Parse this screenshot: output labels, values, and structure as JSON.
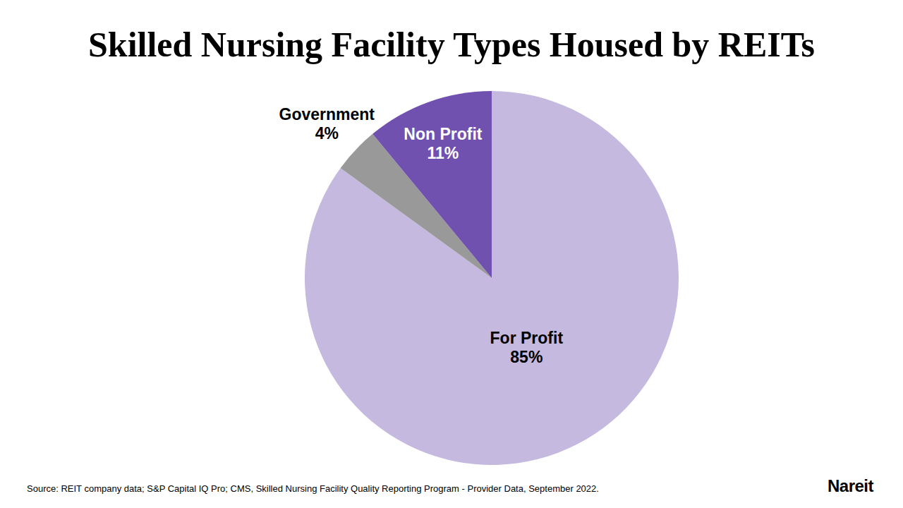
{
  "chart_data": {
    "type": "pie",
    "title": "Skilled Nursing Facility Types Housed by REITs",
    "categories": [
      "For Profit",
      "Government",
      "Non Profit"
    ],
    "values": [
      85,
      4,
      11
    ],
    "value_labels": [
      "85%",
      "4%",
      "11%"
    ],
    "colors": [
      "#c5b9df",
      "#999999",
      "#7151b0"
    ],
    "data_labels": true,
    "source": "Source: REIT company data; S&P Capital IQ Pro; CMS, Skilled Nursing Facility Quality Reporting Program - Provider Data, September 2022.",
    "logo": "Nareit"
  }
}
